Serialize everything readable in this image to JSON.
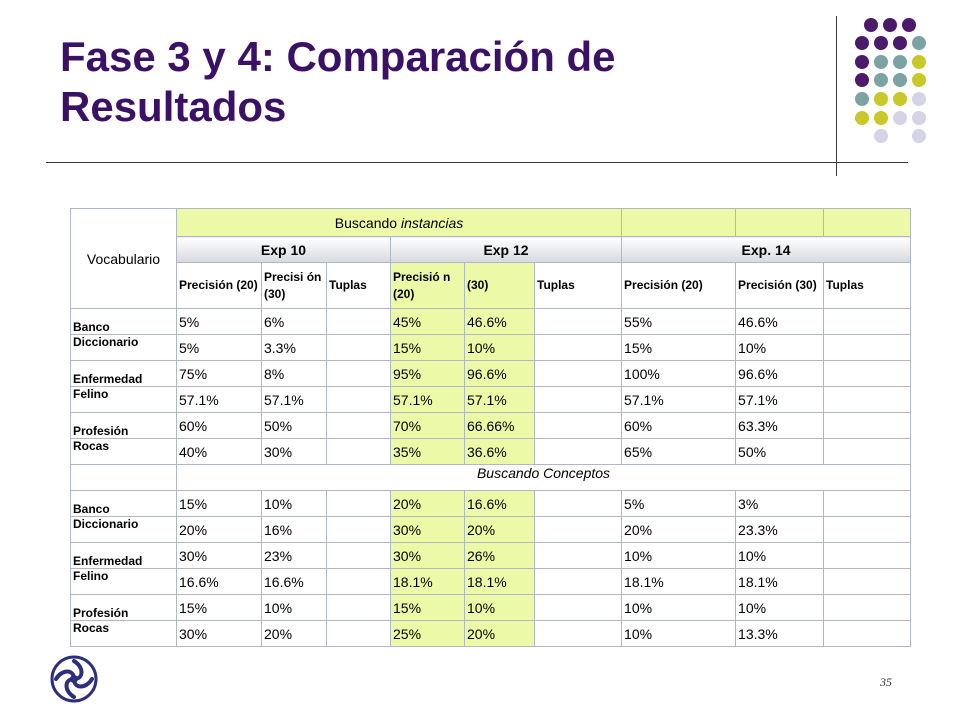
{
  "slide": {
    "title": "Fase 3 y 4: Comparación de Resultados",
    "page_number": "35",
    "logo_icon": "celtic-knot-logo",
    "dot_colors": [
      "#4b1a6b",
      "#7ba3a4",
      "#c8c829",
      "#d4d4e6"
    ]
  },
  "table": {
    "vocab_header": "Vocabulario",
    "group_header": {
      "prefix": "Buscando ",
      "italic": "instancias"
    },
    "experiments": [
      "Exp 10",
      "Exp 12",
      "Exp. 14"
    ],
    "subheaders": [
      "Precisión (20)",
      "Precisi ón (30)",
      "Tuplas",
      "Precisió n (20)",
      "(30)",
      "Tuplas",
      "Precisión (20)",
      "Precisión (30)",
      "Tuplas"
    ],
    "section2_title": "Buscando Conceptos",
    "instances_rows": [
      {
        "label": "Banco",
        "values": [
          "5%",
          "6%",
          "",
          "45%",
          "46.6%",
          "",
          "55%",
          "46.6%",
          ""
        ]
      },
      {
        "label": "Diccionario",
        "values": [
          "5%",
          "3.3%",
          "",
          "15%",
          "10%",
          "",
          "15%",
          "10%",
          ""
        ]
      },
      {
        "label": "Enfermedad",
        "values": [
          "75%",
          "8%",
          "",
          "95%",
          "96.6%",
          "",
          "100%",
          "96.6%",
          ""
        ]
      },
      {
        "label": "Felino",
        "values": [
          "57.1%",
          "57.1%",
          "",
          "57.1%",
          "57.1%",
          "",
          "57.1%",
          "57.1%",
          ""
        ]
      },
      {
        "label": "Profesión",
        "values": [
          "60%",
          "50%",
          "",
          "70%",
          "66.66%",
          "",
          "60%",
          "63.3%",
          ""
        ]
      },
      {
        "label": "Rocas",
        "values": [
          "40%",
          "30%",
          "",
          "35%",
          "36.6%",
          "",
          "65%",
          "50%",
          ""
        ]
      }
    ],
    "concepts_rows": [
      {
        "label": "Banco",
        "values": [
          "15%",
          "10%",
          "",
          "20%",
          "16.6%",
          "",
          "5%",
          "3%",
          ""
        ]
      },
      {
        "label": "Diccionario",
        "values": [
          "20%",
          "16%",
          "",
          "30%",
          "20%",
          "",
          "20%",
          "23.3%",
          ""
        ]
      },
      {
        "label": "Enfermedad",
        "values": [
          "30%",
          "23%",
          "",
          "30%",
          "26%",
          "",
          "10%",
          "10%",
          ""
        ]
      },
      {
        "label": "Felino",
        "values": [
          "16.6%",
          "16.6%",
          "",
          "18.1%",
          "18.1%",
          "",
          "18.1%",
          "18.1%",
          ""
        ]
      },
      {
        "label": "Profesión",
        "values": [
          "15%",
          "10%",
          "",
          "15%",
          "10%",
          "",
          "10%",
          "10%",
          ""
        ]
      },
      {
        "label": "Rocas",
        "values": [
          "30%",
          "20%",
          "",
          "25%",
          "20%",
          "",
          "10%",
          "13.3%",
          ""
        ]
      }
    ]
  }
}
